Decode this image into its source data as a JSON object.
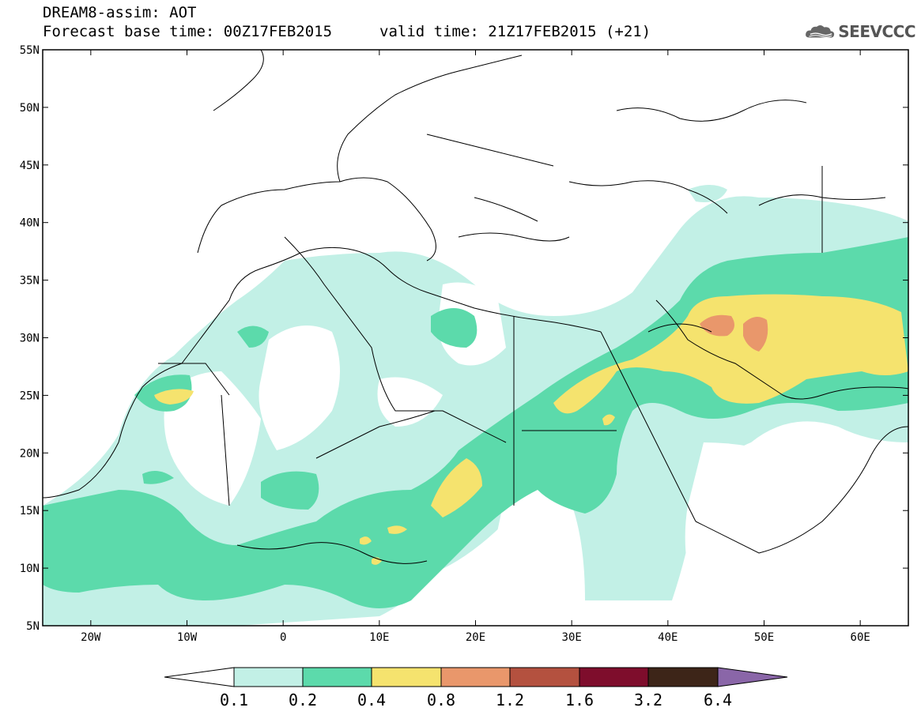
{
  "header": {
    "title": "DREAM8-assim: AOT",
    "base_time": "Forecast base time: 00Z17FEB2015",
    "valid_time": "valid time: 21Z17FEB2015 (+21)",
    "logo_text": "SEEVCCC",
    "logo_icon": "cloud-logo-icon"
  },
  "map": {
    "lat_ticks": [
      "55N",
      "50N",
      "45N",
      "40N",
      "35N",
      "30N",
      "25N",
      "20N",
      "15N",
      "10N",
      "5N"
    ],
    "lon_ticks": [
      "20W",
      "10W",
      "0",
      "10E",
      "20E",
      "30E",
      "40E",
      "50E",
      "60E"
    ],
    "lon_range": [
      -25,
      65
    ],
    "lat_range": [
      5,
      55
    ]
  },
  "colorbar": {
    "labels": [
      "0.1",
      "0.2",
      "0.4",
      "0.8",
      "1.2",
      "1.6",
      "3.2",
      "6.4"
    ],
    "colors": {
      "below": "#ffffff",
      "c1": "#c2f0e6",
      "c2": "#5cdaab",
      "c3": "#f5e36e",
      "c4": "#e9976b",
      "c5": "#b4513f",
      "c6": "#7e0d2c",
      "c7": "#3d2518",
      "above": "#8a66a8"
    }
  }
}
